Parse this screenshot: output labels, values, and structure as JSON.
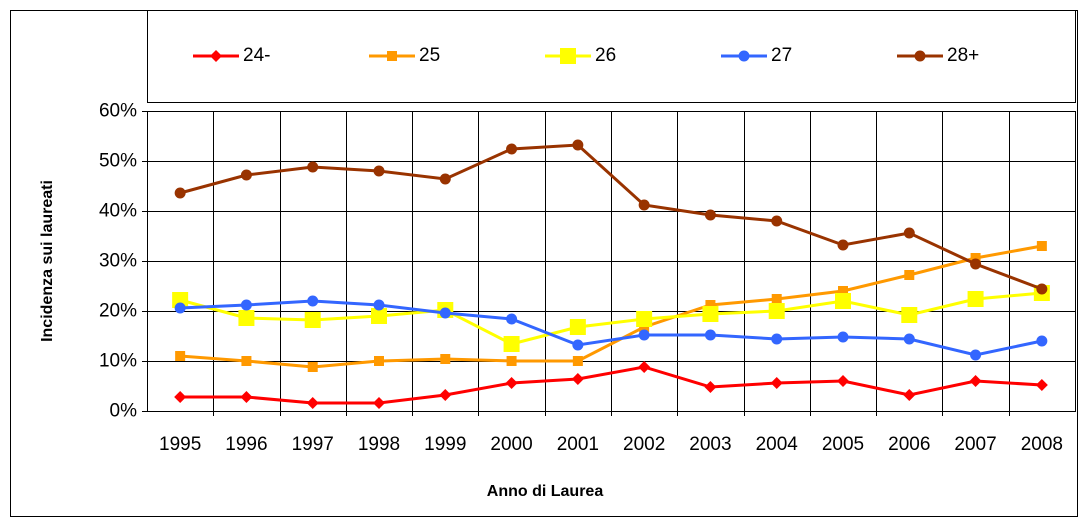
{
  "chart_data": {
    "type": "line",
    "x_label": "Anno di Laurea",
    "y_label": "Incidenza sui laureati",
    "categories": [
      "1995",
      "1996",
      "1997",
      "1998",
      "1999",
      "2000",
      "2001",
      "2002",
      "2003",
      "2004",
      "2005",
      "2006",
      "2007",
      "2008"
    ],
    "series": [
      {
        "name": "24-",
        "color": "#ff0000",
        "marker": "diamond",
        "values": [
          2.8,
          2.8,
          1.6,
          1.6,
          3.2,
          5.6,
          6.4,
          8.8,
          4.8,
          5.6,
          6,
          3.2,
          6,
          5.2
        ]
      },
      {
        "name": "25",
        "color": "#ff9900",
        "marker": "square",
        "values": [
          11,
          10,
          8.8,
          10,
          10.4,
          10,
          10,
          16.8,
          21.2,
          22.4,
          24,
          27.2,
          30.6,
          33
        ]
      },
      {
        "name": "26",
        "color": "#ffff00",
        "marker": "bigsquare",
        "values": [
          22.2,
          18.6,
          18.2,
          19,
          20.2,
          13.4,
          16.8,
          18.4,
          19.4,
          20,
          22,
          19.2,
          22.4,
          23.6
        ]
      },
      {
        "name": "27",
        "color": "#3366ff",
        "marker": "circle",
        "values": [
          20.6,
          21.2,
          22,
          21.2,
          19.6,
          18.4,
          13.2,
          15.2,
          15.2,
          14.4,
          14.8,
          14.4,
          11.2,
          14
        ]
      },
      {
        "name": "28+",
        "color": "#993300",
        "marker": "circle",
        "values": [
          43.6,
          47.2,
          48.8,
          48,
          46.4,
          52.4,
          53.2,
          41.2,
          39.2,
          38,
          33.2,
          35.6,
          29.4,
          24.4
        ]
      }
    ],
    "ylim": [
      0,
      60
    ],
    "yticks": [
      {
        "value": 0,
        "label": "0%"
      },
      {
        "value": 10,
        "label": "10%"
      },
      {
        "value": 20,
        "label": "20%"
      },
      {
        "value": 30,
        "label": "30%"
      },
      {
        "value": 40,
        "label": "40%"
      },
      {
        "value": 50,
        "label": "50%"
      },
      {
        "value": 60,
        "label": "60%"
      }
    ],
    "grid": true,
    "legend": "top"
  }
}
